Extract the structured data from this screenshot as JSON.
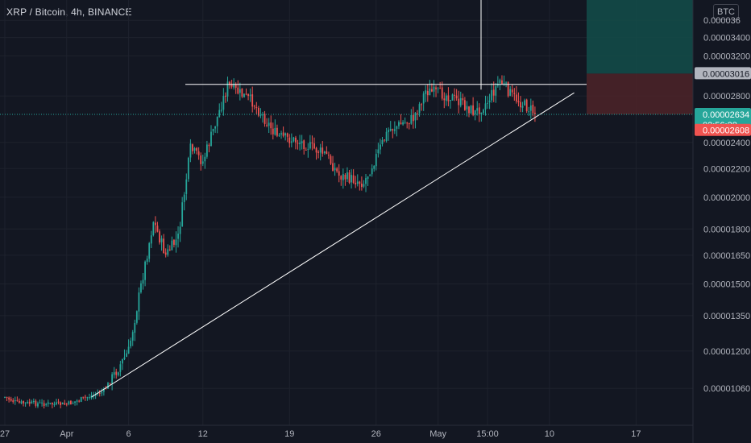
{
  "header": {
    "symbol_title": "XRP / Bitcoin, 4h, BINANCE",
    "currency_badge": "BTC"
  },
  "colors": {
    "background": "#131722",
    "grid": "#1e222d",
    "up_candle": "#26a69a",
    "down_candle": "#ef5350",
    "trendline": "#ffffff",
    "target_zone": "#134e4a",
    "stop_zone": "#4a2228",
    "last_price_label": "#26a69a",
    "bid_price_label": "#ef5350",
    "entry_price_label": "#b2b5be"
  },
  "price_axis": {
    "ticks": [
      "0.000036",
      "0.00003400",
      "0.00003200",
      "0.00002800",
      "0.00002400",
      "0.00002200",
      "0.00002000",
      "0.00001800",
      "0.00001650",
      "0.00001500",
      "0.00001350",
      "0.00001200",
      "0.00001060"
    ],
    "entry_label": "0.00003016",
    "last_price_label": "0.00002634",
    "countdown_label": "02:56:28",
    "bid_label": "0.00002608"
  },
  "time_axis": {
    "ticks": [
      "27",
      "Apr",
      "6",
      "12",
      "19",
      "26",
      "May",
      "15:00",
      "10",
      "17"
    ]
  },
  "chart_data": {
    "type": "candlestick",
    "title": "XRP / Bitcoin, 4h, BINANCE",
    "y_scale": "log",
    "ylim": [
      1e-05,
      3.7e-05
    ],
    "x_labels": [
      "27",
      "Apr",
      "6",
      "12",
      "19",
      "26",
      "May",
      "15:00",
      "10",
      "17"
    ],
    "close_path": [
      {
        "x": "Mar 27",
        "close": 1.03e-05
      },
      {
        "x": "Mar 28",
        "close": 1.01e-05
      },
      {
        "x": "Apr 1",
        "close": 1.005e-05
      },
      {
        "x": "Apr 4",
        "close": 1.05e-05
      },
      {
        "x": "Apr 6",
        "close": 1.2e-05
      },
      {
        "x": "Apr 8",
        "close": 1.85e-05
      },
      {
        "x": "Apr 9",
        "close": 1.65e-05
      },
      {
        "x": "Apr 10",
        "close": 1.75e-05
      },
      {
        "x": "Apr 11",
        "close": 2.35e-05
      },
      {
        "x": "Apr 12",
        "close": 2.25e-05
      },
      {
        "x": "Apr 14",
        "close": 2.9e-05
      },
      {
        "x": "Apr 16",
        "close": 2.75e-05
      },
      {
        "x": "Apr 18",
        "close": 2.45e-05
      },
      {
        "x": "Apr 20",
        "close": 2.4e-05
      },
      {
        "x": "Apr 22",
        "close": 2.3e-05
      },
      {
        "x": "Apr 23",
        "close": 2.15e-05
      },
      {
        "x": "Apr 25",
        "close": 2.1e-05
      },
      {
        "x": "Apr 27",
        "close": 2.5e-05
      },
      {
        "x": "Apr 29",
        "close": 2.6e-05
      },
      {
        "x": "Apr 30",
        "close": 2.85e-05
      },
      {
        "x": "May 2",
        "close": 2.8e-05
      },
      {
        "x": "May 4",
        "close": 2.65e-05
      },
      {
        "x": "May 5",
        "close": 2.75e-05
      },
      {
        "x": "May 6",
        "close": 2.95e-05
      },
      {
        "x": "May 7",
        "close": 2.8e-05
      },
      {
        "x": "May 9",
        "close": 2.634e-05
      }
    ],
    "last_price": 2.634e-05,
    "bid_price": 2.608e-05,
    "annotations": {
      "resistance_level": 2.91e-05,
      "ascending_trendline": [
        {
          "x": "Apr 3",
          "price": 1.03e-05
        },
        {
          "x": "May 12",
          "price": 2.83e-05
        }
      ],
      "position": {
        "entry": 3.016e-05,
        "target_top": 3.7e-05,
        "stop": 2.634e-05
      }
    }
  }
}
